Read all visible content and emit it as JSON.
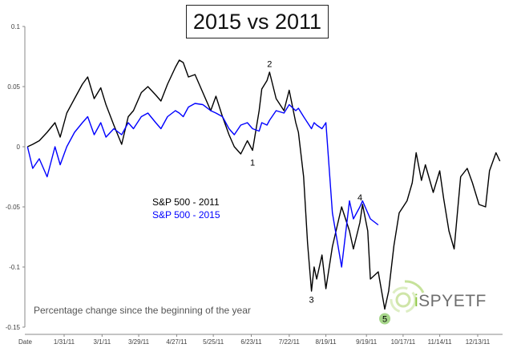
{
  "chart_data": {
    "type": "line",
    "title": "2015 vs 2011",
    "xlabel": "Date",
    "ylabel": "",
    "ylim": [
      -0.15,
      0.1
    ],
    "yticks": [
      "0.1",
      "0.05",
      "0",
      "-0.05",
      "-0.1",
      "-0.15"
    ],
    "xticks": [
      "1/31/11",
      "3/1/11",
      "3/29/11",
      "4/27/11",
      "5/25/11",
      "6/23/11",
      "7/22/11",
      "8/19/11",
      "9/19/11",
      "10/17/11",
      "11/14/11",
      "12/13/11"
    ],
    "grid": false,
    "legend_position": "center-left",
    "series": [
      {
        "name": "S&P 500 - 2011",
        "color": "#000000",
        "points": [
          [
            "1/3/11",
            0.0
          ],
          [
            "1/7/11",
            0.002
          ],
          [
            "1/12/11",
            0.005
          ],
          [
            "1/18/11",
            0.012
          ],
          [
            "1/24/11",
            0.02
          ],
          [
            "1/28/11",
            0.008
          ],
          [
            "2/2/11",
            0.028
          ],
          [
            "2/8/11",
            0.04
          ],
          [
            "2/14/11",
            0.052
          ],
          [
            "2/18/11",
            0.058
          ],
          [
            "2/23/11",
            0.04
          ],
          [
            "2/28/11",
            0.049
          ],
          [
            "3/4/11",
            0.035
          ],
          [
            "3/10/11",
            0.018
          ],
          [
            "3/16/11",
            0.002
          ],
          [
            "3/21/11",
            0.025
          ],
          [
            "3/25/11",
            0.03
          ],
          [
            "3/31/11",
            0.045
          ],
          [
            "4/5/11",
            0.05
          ],
          [
            "4/11/11",
            0.043
          ],
          [
            "4/15/11",
            0.038
          ],
          [
            "4/20/11",
            0.052
          ],
          [
            "4/26/11",
            0.066
          ],
          [
            "4/29/11",
            0.072
          ],
          [
            "5/2/11",
            0.07
          ],
          [
            "5/6/11",
            0.058
          ],
          [
            "5/11/11",
            0.06
          ],
          [
            "5/17/11",
            0.045
          ],
          [
            "5/23/11",
            0.03
          ],
          [
            "5/27/11",
            0.042
          ],
          [
            "6/1/11",
            0.025
          ],
          [
            "6/6/11",
            0.01
          ],
          [
            "6/10/11",
            0.0
          ],
          [
            "6/15/11",
            -0.006
          ],
          [
            "6/20/11",
            0.005
          ],
          [
            "6/24/11",
            -0.003
          ],
          [
            "6/29/11",
            0.03
          ],
          [
            "7/1/11",
            0.048
          ],
          [
            "7/5/11",
            0.055
          ],
          [
            "7/7/11",
            0.062
          ],
          [
            "7/12/11",
            0.04
          ],
          [
            "7/18/11",
            0.03
          ],
          [
            "7/22/11",
            0.047
          ],
          [
            "7/27/11",
            0.02
          ],
          [
            "7/29/11",
            0.012
          ],
          [
            "8/2/11",
            -0.025
          ],
          [
            "8/5/11",
            -0.08
          ],
          [
            "8/8/11",
            -0.12
          ],
          [
            "8/10/11",
            -0.1
          ],
          [
            "8/12/11",
            -0.11
          ],
          [
            "8/16/11",
            -0.09
          ],
          [
            "8/19/11",
            -0.118
          ],
          [
            "8/24/11",
            -0.083
          ],
          [
            "8/31/11",
            -0.05
          ],
          [
            "9/6/11",
            -0.07
          ],
          [
            "9/9/11",
            -0.085
          ],
          [
            "9/14/11",
            -0.063
          ],
          [
            "9/16/11",
            -0.048
          ],
          [
            "9/20/11",
            -0.07
          ],
          [
            "9/22/11",
            -0.11
          ],
          [
            "9/28/11",
            -0.104
          ],
          [
            "10/3/11",
            -0.135
          ],
          [
            "10/6/11",
            -0.12
          ],
          [
            "10/10/11",
            -0.082
          ],
          [
            "10/14/11",
            -0.055
          ],
          [
            "10/20/11",
            -0.045
          ],
          [
            "10/24/11",
            -0.03
          ],
          [
            "10/27/11",
            -0.005
          ],
          [
            "10/31/11",
            -0.028
          ],
          [
            "11/3/11",
            -0.015
          ],
          [
            "11/9/11",
            -0.038
          ],
          [
            "11/14/11",
            -0.02
          ],
          [
            "11/17/11",
            -0.043
          ],
          [
            "11/21/11",
            -0.07
          ],
          [
            "11/25/11",
            -0.085
          ],
          [
            "11/30/11",
            -0.025
          ],
          [
            "12/5/11",
            -0.018
          ],
          [
            "12/9/11",
            -0.03
          ],
          [
            "12/14/11",
            -0.048
          ],
          [
            "12/19/11",
            -0.05
          ],
          [
            "12/22/11",
            -0.02
          ],
          [
            "12/27/11",
            -0.005
          ],
          [
            "12/30/11",
            -0.012
          ]
        ]
      },
      {
        "name": "S&P 500 - 2015",
        "color": "#0000ff",
        "points": [
          [
            "1/3/11",
            0.0
          ],
          [
            "1/7/11",
            -0.018
          ],
          [
            "1/12/11",
            -0.01
          ],
          [
            "1/18/11",
            -0.025
          ],
          [
            "1/24/11",
            0.0
          ],
          [
            "1/28/11",
            -0.015
          ],
          [
            "2/2/11",
            0.0
          ],
          [
            "2/8/11",
            0.012
          ],
          [
            "2/14/11",
            0.02
          ],
          [
            "2/18/11",
            0.025
          ],
          [
            "2/23/11",
            0.01
          ],
          [
            "2/28/11",
            0.02
          ],
          [
            "3/4/11",
            0.008
          ],
          [
            "3/10/11",
            0.015
          ],
          [
            "3/16/11",
            0.01
          ],
          [
            "3/21/11",
            0.02
          ],
          [
            "3/25/11",
            0.015
          ],
          [
            "3/31/11",
            0.025
          ],
          [
            "4/5/11",
            0.028
          ],
          [
            "4/11/11",
            0.02
          ],
          [
            "4/15/11",
            0.015
          ],
          [
            "4/20/11",
            0.025
          ],
          [
            "4/26/11",
            0.03
          ],
          [
            "4/29/11",
            0.028
          ],
          [
            "5/2/11",
            0.025
          ],
          [
            "5/6/11",
            0.033
          ],
          [
            "5/11/11",
            0.036
          ],
          [
            "5/17/11",
            0.035
          ],
          [
            "5/23/11",
            0.03
          ],
          [
            "5/27/11",
            0.028
          ],
          [
            "6/1/11",
            0.025
          ],
          [
            "6/6/11",
            0.015
          ],
          [
            "6/10/11",
            0.01
          ],
          [
            "6/15/11",
            0.018
          ],
          [
            "6/20/11",
            0.02
          ],
          [
            "6/24/11",
            0.015
          ],
          [
            "6/29/11",
            0.013
          ],
          [
            "7/1/11",
            0.02
          ],
          [
            "7/5/11",
            0.018
          ],
          [
            "7/7/11",
            0.022
          ],
          [
            "7/12/11",
            0.03
          ],
          [
            "7/18/11",
            0.028
          ],
          [
            "7/22/11",
            0.035
          ],
          [
            "7/27/11",
            0.03
          ],
          [
            "7/29/11",
            0.032
          ],
          [
            "8/2/11",
            0.025
          ],
          [
            "8/5/11",
            0.02
          ],
          [
            "8/8/11",
            0.015
          ],
          [
            "8/10/11",
            0.02
          ],
          [
            "8/12/11",
            0.018
          ],
          [
            "8/16/11",
            0.015
          ],
          [
            "8/19/11",
            0.02
          ],
          [
            "8/24/11",
            -0.055
          ],
          [
            "8/31/11",
            -0.1
          ],
          [
            "9/6/11",
            -0.045
          ],
          [
            "9/9/11",
            -0.06
          ],
          [
            "9/14/11",
            -0.05
          ],
          [
            "9/16/11",
            -0.045
          ],
          [
            "9/20/11",
            -0.055
          ],
          [
            "9/22/11",
            -0.06
          ],
          [
            "9/28/11",
            -0.065
          ]
        ]
      }
    ],
    "annotations": [
      "1",
      "2",
      "3",
      "4",
      "5"
    ]
  },
  "footnote": "Percentage change since the beginning of the year",
  "brand": {
    "prefix": "i",
    "name": "SPYETF",
    "accent": "#8cc63f"
  }
}
